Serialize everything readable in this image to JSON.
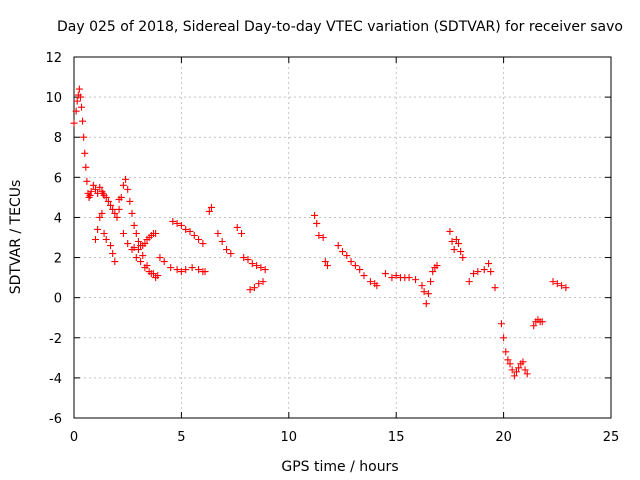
{
  "chart_data": {
    "type": "scatter",
    "title": "Day 025 of 2018, Sidereal Day-to-day VTEC variation (SDTVAR) for receiver savo",
    "xlabel": "GPS time / hours",
    "ylabel": "SDTVAR / TECUs",
    "xlim": [
      0,
      25
    ],
    "ylim": [
      -6,
      12
    ],
    "xticks": [
      0,
      5,
      10,
      15,
      20,
      25
    ],
    "yticks": [
      -6,
      -4,
      -2,
      0,
      2,
      4,
      6,
      8,
      10,
      12
    ],
    "xtick_labels": [
      "0",
      "5",
      "10",
      "15",
      "20",
      "25"
    ],
    "ytick_labels": [
      "-6",
      "-4",
      "-2",
      "0",
      "2",
      "4",
      "6",
      "8",
      "10",
      "12"
    ],
    "grid": true,
    "marker": "+",
    "color": "#ff0000",
    "series": [
      {
        "name": "savo",
        "x": [
          0.0,
          0.1,
          0.15,
          0.2,
          0.25,
          0.3,
          0.35,
          0.4,
          0.45,
          0.5,
          0.55,
          0.6,
          0.65,
          0.7,
          0.75,
          0.8,
          0.9,
          1.0,
          1.1,
          1.2,
          1.3,
          1.35,
          1.4,
          1.5,
          1.6,
          1.7,
          1.8,
          1.9,
          2.0,
          2.1,
          2.2,
          2.3,
          2.4,
          2.5,
          2.6,
          2.7,
          2.8,
          2.9,
          3.0,
          3.1,
          3.2,
          3.3,
          3.4,
          3.5,
          3.6,
          3.7,
          3.8,
          4.0,
          4.2,
          4.5,
          4.8,
          5.0,
          5.2,
          5.5,
          5.8,
          6.0,
          6.1,
          4.6,
          4.8,
          5.0,
          5.2,
          5.4,
          5.6,
          5.8,
          6.0,
          6.3,
          6.4,
          6.7,
          6.9,
          7.1,
          7.3,
          7.6,
          7.8,
          7.9,
          8.1,
          8.3,
          8.5,
          8.7,
          8.9,
          8.2,
          8.4,
          8.6,
          8.8,
          1.7,
          1.8,
          1.9,
          2.1,
          2.3,
          2.5,
          2.7,
          2.9,
          3.1,
          3.3,
          3.5,
          3.7,
          3.9,
          1.2,
          1.3,
          1.4,
          1.5,
          2.8,
          3.0,
          3.2,
          3.4,
          3.6,
          3.8,
          0.7,
          0.75,
          1.0,
          1.1,
          11.2,
          11.3,
          11.4,
          11.6,
          11.7,
          11.8,
          12.3,
          12.5,
          12.7,
          12.9,
          13.1,
          13.3,
          13.5,
          13.8,
          14.0,
          14.1,
          14.5,
          14.8,
          15.0,
          15.2,
          15.4,
          15.6,
          15.9,
          16.2,
          16.3,
          16.4,
          16.5,
          16.6,
          16.7,
          16.8,
          16.9,
          17.5,
          17.6,
          17.7,
          17.8,
          17.9,
          18.0,
          18.1,
          18.4,
          18.6,
          18.8,
          19.1,
          19.3,
          19.4,
          19.6,
          19.9,
          20.0,
          20.1,
          20.2,
          20.3,
          20.4,
          20.5,
          20.6,
          20.7,
          20.8,
          20.9,
          21.0,
          21.1,
          21.4,
          21.5,
          21.6,
          21.7,
          21.8,
          22.3,
          22.5,
          22.7,
          22.9
        ],
        "y": [
          8.7,
          9.3,
          9.8,
          10.1,
          10.4,
          10.0,
          9.5,
          8.8,
          8.0,
          7.2,
          6.5,
          5.8,
          5.2,
          5.0,
          5.1,
          5.3,
          5.6,
          5.4,
          5.2,
          5.5,
          5.3,
          5.2,
          5.1,
          5.0,
          4.8,
          4.6,
          4.4,
          4.2,
          4.0,
          4.4,
          5.0,
          5.6,
          5.9,
          5.4,
          4.8,
          4.2,
          3.6,
          3.2,
          2.8,
          2.6,
          2.6,
          2.7,
          2.9,
          3.0,
          3.1,
          3.2,
          3.2,
          2.0,
          1.8,
          1.5,
          1.4,
          1.3,
          1.4,
          1.5,
          1.4,
          1.3,
          1.3,
          3.8,
          3.7,
          3.6,
          3.4,
          3.3,
          3.1,
          2.9,
          2.7,
          4.3,
          4.5,
          3.2,
          2.8,
          2.4,
          2.2,
          3.5,
          3.2,
          2.0,
          1.9,
          1.7,
          1.6,
          1.5,
          1.4,
          0.4,
          0.5,
          0.7,
          0.8,
          2.6,
          2.2,
          1.8,
          4.9,
          3.2,
          2.7,
          2.4,
          2.0,
          1.8,
          1.5,
          1.3,
          1.2,
          1.1,
          4.0,
          4.2,
          3.2,
          2.9,
          2.5,
          2.4,
          2.1,
          1.6,
          1.2,
          1.0,
          5.0,
          5.1,
          2.9,
          3.4,
          4.1,
          3.7,
          3.1,
          3.0,
          1.8,
          1.6,
          2.6,
          2.3,
          2.1,
          1.8,
          1.6,
          1.4,
          1.1,
          0.8,
          0.7,
          0.6,
          1.2,
          1.0,
          1.1,
          1.0,
          1.0,
          1.0,
          0.9,
          0.6,
          0.3,
          -0.3,
          0.2,
          0.8,
          1.3,
          1.5,
          1.6,
          3.3,
          2.8,
          2.4,
          2.9,
          2.7,
          2.3,
          2.0,
          0.8,
          1.2,
          1.3,
          1.4,
          1.7,
          1.3,
          0.5,
          -1.3,
          -2.0,
          -2.7,
          -3.1,
          -3.3,
          -3.6,
          -3.9,
          -3.7,
          -3.5,
          -3.3,
          -3.2,
          -3.6,
          -3.8,
          -1.4,
          -1.2,
          -1.1,
          -1.2,
          -1.2,
          0.8,
          0.7,
          0.6,
          0.5
        ]
      }
    ]
  }
}
